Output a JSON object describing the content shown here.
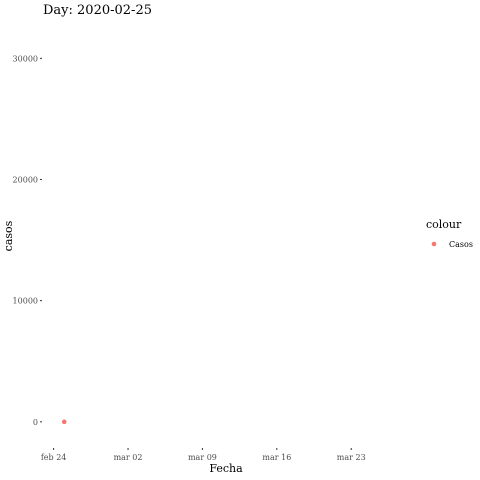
{
  "chart_data": {
    "type": "scatter",
    "title": "Day: 2020-02-25",
    "xlabel": "Fecha",
    "ylabel": "casos",
    "x_ticks": [
      {
        "date": "2020-02-24",
        "label": "feb 24"
      },
      {
        "date": "2020-03-02",
        "label": "mar 02"
      },
      {
        "date": "2020-03-09",
        "label": "mar 09"
      },
      {
        "date": "2020-03-16",
        "label": "mar 16"
      },
      {
        "date": "2020-03-23",
        "label": "mar 23"
      }
    ],
    "y_ticks": [
      0,
      10000,
      20000,
      30000
    ],
    "xlim": [
      "2020-02-23",
      "2020-03-29"
    ],
    "ylim": [
      -1500,
      33000
    ],
    "series": [
      {
        "name": "Casos",
        "color": "#f8766d",
        "points": [
          {
            "x": "2020-02-25",
            "y": 1
          }
        ]
      }
    ],
    "legend": {
      "title": "colour",
      "position": "right",
      "entries": [
        "Casos"
      ]
    },
    "grid": false
  }
}
